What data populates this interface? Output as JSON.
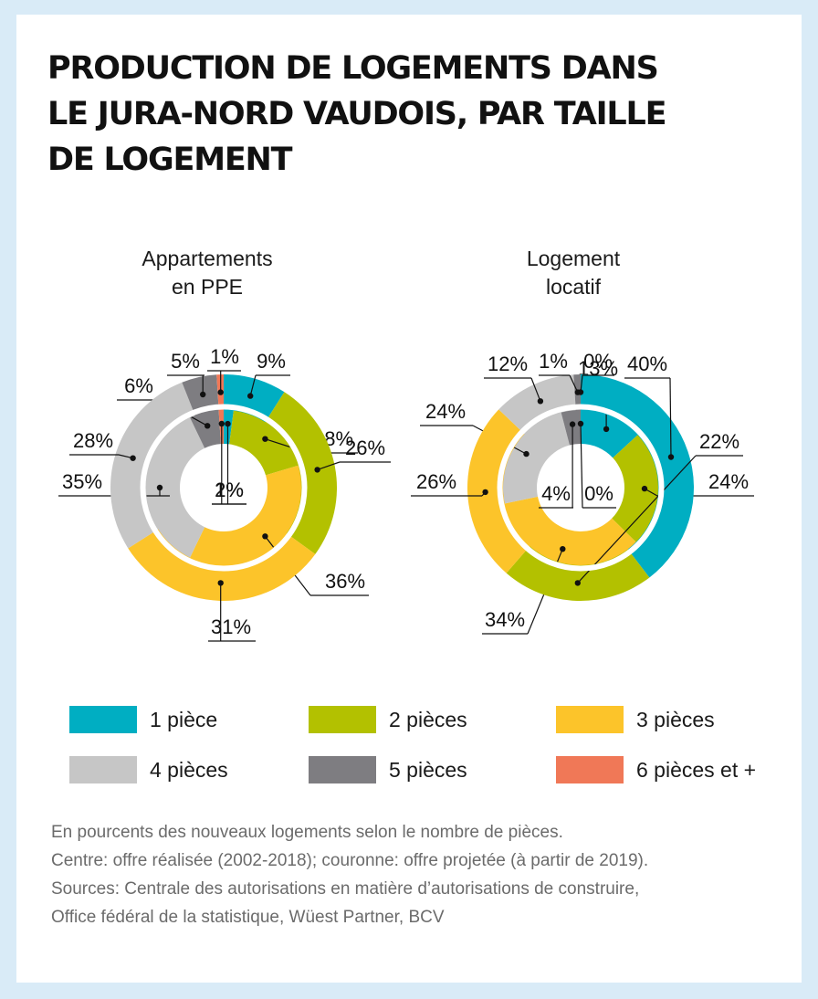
{
  "title_lines": [
    "PRODUCTION DE LOGEMENTS DANS",
    "LE JURA-NORD VAUDOIS, PAR TAILLE",
    "DE LOGEMENT"
  ],
  "colors": {
    "1 pièce": "#00aec2",
    "2 pièces": "#b3c100",
    "3 pièces": "#fcc42a",
    "4 pièces": "#c6c6c6",
    "5 pièces": "#7e7d81",
    "6 pièces et +": "#f07857"
  },
  "legend": [
    {
      "label": "1 pièce",
      "color": "#00aec2"
    },
    {
      "label": "2 pièces",
      "color": "#b3c100"
    },
    {
      "label": "3 pièces",
      "color": "#fcc42a"
    },
    {
      "label": "4 pièces",
      "color": "#c6c6c6"
    },
    {
      "label": "5 pièces",
      "color": "#7e7d81"
    },
    {
      "label": "6 pièces et +",
      "color": "#f07857"
    }
  ],
  "notes": [
    "En pourcents des nouveaux logements selon le nombre de pièces.",
    "Centre: offre réalisée (2002-2018); couronne: offre projetée (à partir de 2019).",
    "Sources: Centrale des autorisations en matière d’autorisations de construire,",
    "Office fédéral de la statistique, Wüest Partner, BCV"
  ],
  "chart_data": [
    {
      "type": "pie",
      "title_lines": [
        "Appartements",
        "en PPE"
      ],
      "categories": [
        "1 pièce",
        "2 pièces",
        "3 pièces",
        "4 pièces",
        "5 pièces",
        "6 pièces et +"
      ],
      "series": [
        {
          "name": "Centre: offre réalisée (2002-2018)",
          "values": [
            2,
            18,
            36,
            35,
            6,
            1
          ]
        },
        {
          "name": "Couronne: offre projetée (à partir de 2019)",
          "values": [
            9,
            26,
            31,
            28,
            5,
            1
          ]
        }
      ]
    },
    {
      "type": "pie",
      "title_lines": [
        "Logement",
        "locatif"
      ],
      "categories": [
        "1 pièce",
        "2 pièces",
        "3 pièces",
        "4 pièces",
        "5 pièces",
        "6 pièces et +"
      ],
      "series": [
        {
          "name": "Centre: offre réalisée (2002-2018)",
          "values": [
            13,
            24,
            34,
            24,
            4,
            0
          ]
        },
        {
          "name": "Couronne: offre projetée (à partir de 2019)",
          "values": [
            40,
            22,
            26,
            12,
            1,
            0
          ]
        }
      ]
    }
  ]
}
